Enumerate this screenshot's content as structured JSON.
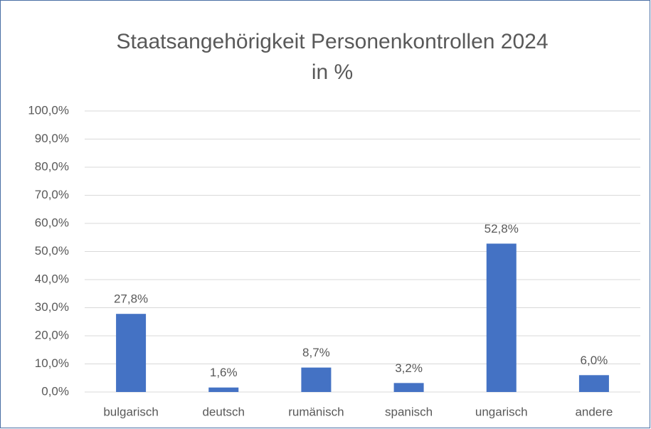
{
  "chart_data": {
    "type": "bar",
    "title": "Staatsangehörigkeit Personenkontrollen 2024",
    "subtitle": "in %",
    "categories": [
      "bulgarisch",
      "deutsch",
      "rumänisch",
      "spanisch",
      "ungarisch",
      "andere"
    ],
    "values": [
      27.8,
      1.6,
      8.7,
      3.2,
      52.8,
      6.0
    ],
    "value_labels": [
      "27,8%",
      "1,6%",
      "8,7%",
      "3,2%",
      "52,8%",
      "6,0%"
    ],
    "color": "#4472c4",
    "ylim": [
      0,
      100
    ],
    "yticks": [
      {
        "value": 0,
        "label": "0,0%"
      },
      {
        "value": 10,
        "label": "10,0%"
      },
      {
        "value": 20,
        "label": "20,0%"
      },
      {
        "value": 30,
        "label": "30,0%"
      },
      {
        "value": 40,
        "label": "40,0%"
      },
      {
        "value": 50,
        "label": "50,0%"
      },
      {
        "value": 60,
        "label": "60,0%"
      },
      {
        "value": 70,
        "label": "70,0%"
      },
      {
        "value": 80,
        "label": "80,0%"
      },
      {
        "value": 90,
        "label": "90,0%"
      },
      {
        "value": 100,
        "label": "100,0%"
      }
    ],
    "grid": true
  }
}
